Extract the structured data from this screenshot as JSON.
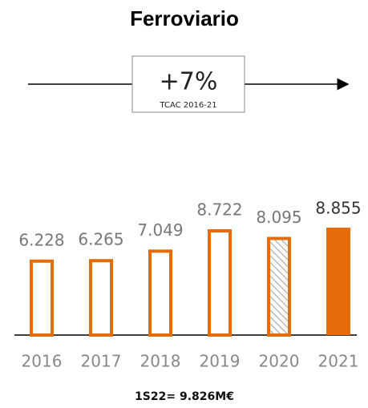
{
  "chart_data": {
    "type": "bar",
    "title": "Ferroviario",
    "annotation": {
      "value": "+7%",
      "label": "TCAC 2016-21"
    },
    "categories": [
      "2016",
      "2017",
      "2018",
      "2019",
      "2020",
      "2021"
    ],
    "values": [
      6228,
      6265,
      7049,
      8722,
      8095,
      8855
    ],
    "value_labels": [
      "6.228",
      "6.265",
      "7.049",
      "8.722",
      "8.095",
      "8.855"
    ],
    "color": "#e46c0a",
    "bar_styles": [
      "outline",
      "outline",
      "outline",
      "outline",
      "hatched",
      "filled"
    ],
    "footnote": "1S22= 9.826M€"
  }
}
